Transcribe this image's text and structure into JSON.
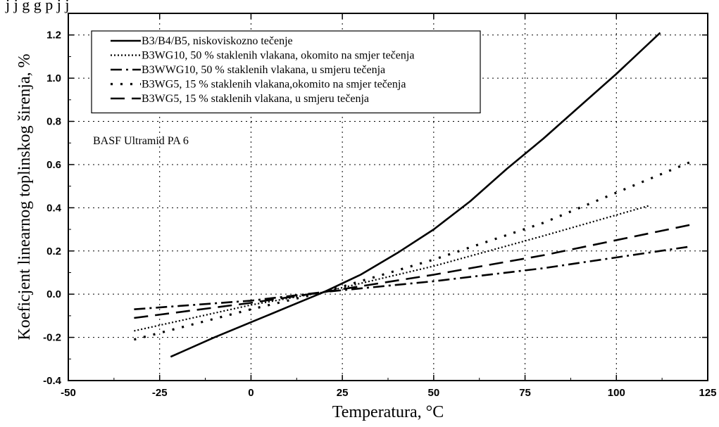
{
  "page_top_text": "j              j         g         g p                j   j",
  "chart_data": {
    "type": "line",
    "xlabel": "Temperatura, °C",
    "ylabel": "Koeficjent linearnog toplinskog širenja, %",
    "xlim": [
      -50,
      125
    ],
    "ylim": [
      -0.4,
      1.3
    ],
    "xticks": [
      -50,
      -25,
      0,
      25,
      50,
      75,
      100,
      125
    ],
    "xtick_labels": [
      "-50",
      "-25",
      "0",
      "25",
      "50",
      "75",
      "100",
      "125"
    ],
    "yticks": [
      -0.4,
      -0.2,
      0.0,
      0.2,
      0.4,
      0.6,
      0.8,
      1.0,
      1.2
    ],
    "ytick_labels": [
      "-0.4",
      "-0.2",
      "0.0",
      "0.2",
      "0.4",
      "0.6",
      "0.8",
      "1.0",
      "1.2"
    ],
    "grid": true,
    "legend_position": "top-left",
    "annotation": "BASF Ultramid PA 6",
    "series": [
      {
        "name": "B3/B4/B5, niskoviskozno tečenje",
        "style": "solid",
        "x": [
          -22,
          -10,
          0,
          10,
          20,
          30,
          40,
          50,
          60,
          70,
          80,
          90,
          100,
          112
        ],
        "y": [
          -0.29,
          -0.2,
          -0.13,
          -0.06,
          0.01,
          0.09,
          0.19,
          0.3,
          0.43,
          0.58,
          0.72,
          0.87,
          1.02,
          1.21
        ]
      },
      {
        "name": "B3WG10, 50 % staklenih vlakana, okomito na smjer tečenja",
        "style": "dotted",
        "x": [
          -32,
          0,
          20,
          50,
          80,
          109
        ],
        "y": [
          -0.17,
          -0.05,
          0.01,
          0.13,
          0.27,
          0.41
        ]
      },
      {
        "name": "B3WWG10, 50 % staklenih vlakana, u smjeru tečenja",
        "style": "dashdot",
        "x": [
          -32,
          0,
          20,
          50,
          80,
          120
        ],
        "y": [
          -0.07,
          -0.03,
          0.01,
          0.06,
          0.12,
          0.22
        ]
      },
      {
        "name": "B3WG5, 15 % staklenih vlakana,okomito na smjer tečenja",
        "style": "sparse-dotted",
        "x": [
          -32,
          0,
          20,
          50,
          80,
          120
        ],
        "y": [
          -0.21,
          -0.07,
          0.01,
          0.16,
          0.33,
          0.61
        ]
      },
      {
        "name": "B3WG5, 15 % staklenih vlakana, u smjeru tečenja",
        "style": "dashed",
        "x": [
          -32,
          0,
          20,
          50,
          80,
          120
        ],
        "y": [
          -0.11,
          -0.04,
          0.01,
          0.09,
          0.18,
          0.32
        ]
      }
    ]
  }
}
